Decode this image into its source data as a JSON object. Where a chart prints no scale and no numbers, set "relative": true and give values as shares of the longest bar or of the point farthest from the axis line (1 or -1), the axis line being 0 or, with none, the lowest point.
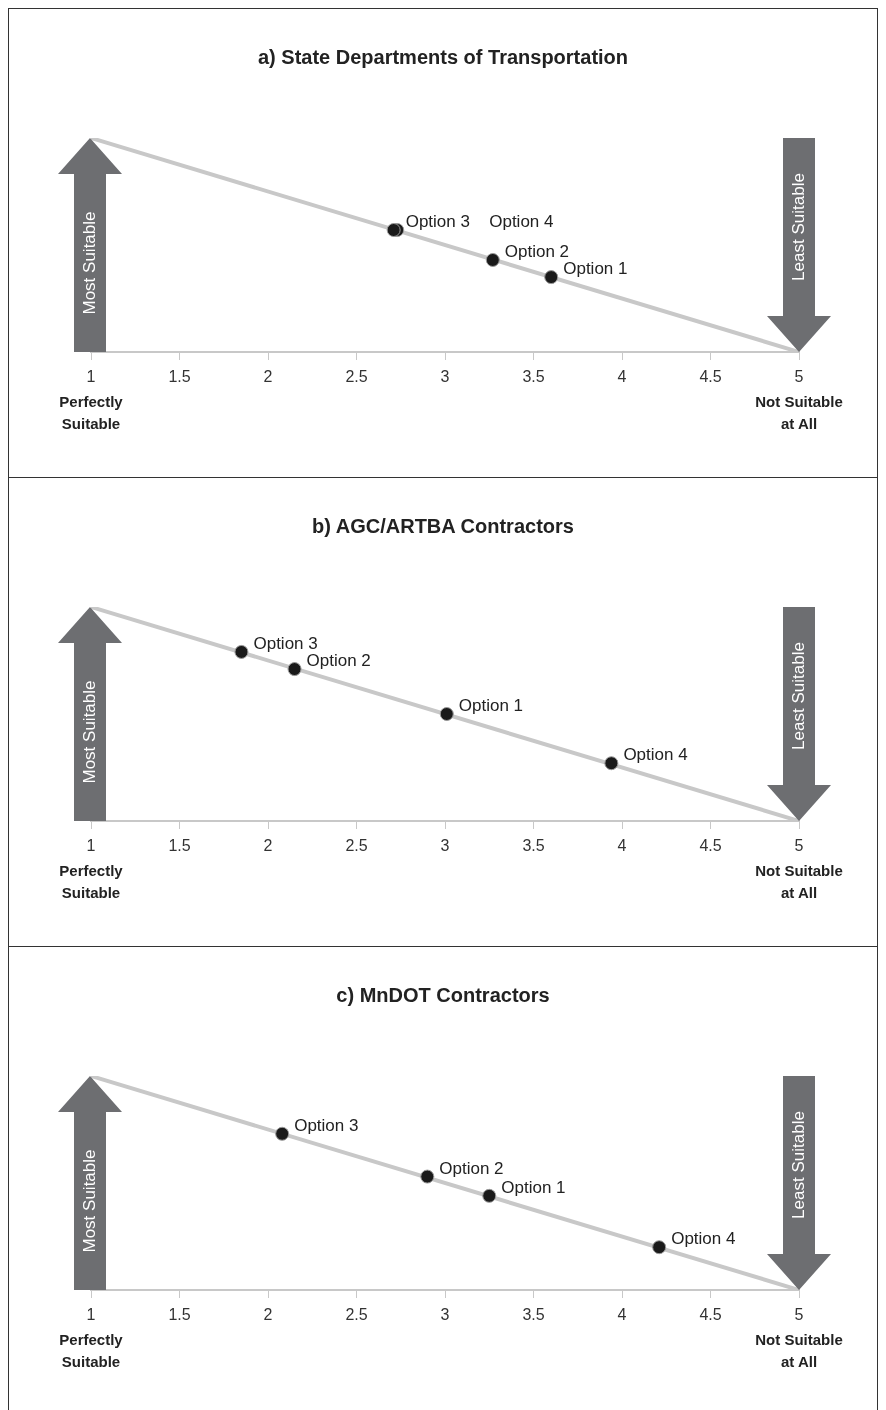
{
  "chart_data": [
    {
      "type": "scatter",
      "title": "a) State Departments of Transportation",
      "relative": true,
      "marker": "circle",
      "xlim": [
        1,
        5
      ],
      "xticks": [
        1,
        1.5,
        2,
        2.5,
        3,
        3.5,
        4,
        4.5,
        5
      ],
      "annotations": [
        "Most Suitable",
        "Least Suitable",
        "Perfectly Suitable",
        "Not Suitable at All"
      ],
      "series": [
        {
          "type": "line",
          "marker": "none",
          "color": "#c8c8c8",
          "x": [
            1,
            5
          ],
          "values": [
            1,
            0
          ]
        },
        {
          "name": "Option 1",
          "color": "#1a1a1a",
          "x": [
            3.6
          ],
          "values": [
            0.35
          ]
        },
        {
          "name": "Option 2",
          "color": "#1a1a1a",
          "x": [
            3.27
          ],
          "values": [
            0.43
          ]
        },
        {
          "name": "Option 3",
          "color": "#1a1a1a",
          "x": [
            2.71
          ],
          "values": [
            0.57
          ]
        },
        {
          "name": "Option 4",
          "color": "#1a1a1a",
          "x": [
            2.73
          ],
          "values": [
            0.57
          ]
        }
      ]
    },
    {
      "type": "scatter",
      "title": "b) AGC/ARTBA Contractors",
      "relative": true,
      "marker": "circle",
      "xlim": [
        1,
        5
      ],
      "xticks": [
        1,
        1.5,
        2,
        2.5,
        3,
        3.5,
        4,
        4.5,
        5
      ],
      "annotations": [
        "Most Suitable",
        "Least Suitable",
        "Perfectly Suitable",
        "Not Suitable at All"
      ],
      "series": [
        {
          "type": "line",
          "marker": "none",
          "color": "#c8c8c8",
          "x": [
            1,
            5
          ],
          "values": [
            1,
            0
          ]
        },
        {
          "name": "Option 1",
          "color": "#1a1a1a",
          "x": [
            3.01
          ],
          "values": [
            0.5
          ]
        },
        {
          "name": "Option 2",
          "color": "#1a1a1a",
          "x": [
            2.15
          ],
          "values": [
            0.71
          ]
        },
        {
          "name": "Option 3",
          "color": "#1a1a1a",
          "x": [
            1.85
          ],
          "values": [
            0.79
          ]
        },
        {
          "name": "Option 4",
          "color": "#1a1a1a",
          "x": [
            3.94
          ],
          "values": [
            0.27
          ]
        }
      ]
    },
    {
      "type": "scatter",
      "title": "c) MnDOT Contractors",
      "relative": true,
      "marker": "circle",
      "xlim": [
        1,
        5
      ],
      "xticks": [
        1,
        1.5,
        2,
        2.5,
        3,
        3.5,
        4,
        4.5,
        5
      ],
      "annotations": [
        "Most Suitable",
        "Least Suitable",
        "Perfectly Suitable",
        "Not Suitable at All"
      ],
      "series": [
        {
          "type": "line",
          "marker": "none",
          "color": "#c8c8c8",
          "x": [
            1,
            5
          ],
          "values": [
            1,
            0
          ]
        },
        {
          "name": "Option 1",
          "color": "#1a1a1a",
          "x": [
            3.25
          ],
          "values": [
            0.44
          ]
        },
        {
          "name": "Option 2",
          "color": "#1a1a1a",
          "x": [
            2.9
          ],
          "values": [
            0.53
          ]
        },
        {
          "name": "Option 3",
          "color": "#1a1a1a",
          "x": [
            2.08
          ],
          "values": [
            0.73
          ]
        },
        {
          "name": "Option 4",
          "color": "#1a1a1a",
          "x": [
            4.21
          ],
          "values": [
            0.2
          ]
        }
      ]
    }
  ]
}
